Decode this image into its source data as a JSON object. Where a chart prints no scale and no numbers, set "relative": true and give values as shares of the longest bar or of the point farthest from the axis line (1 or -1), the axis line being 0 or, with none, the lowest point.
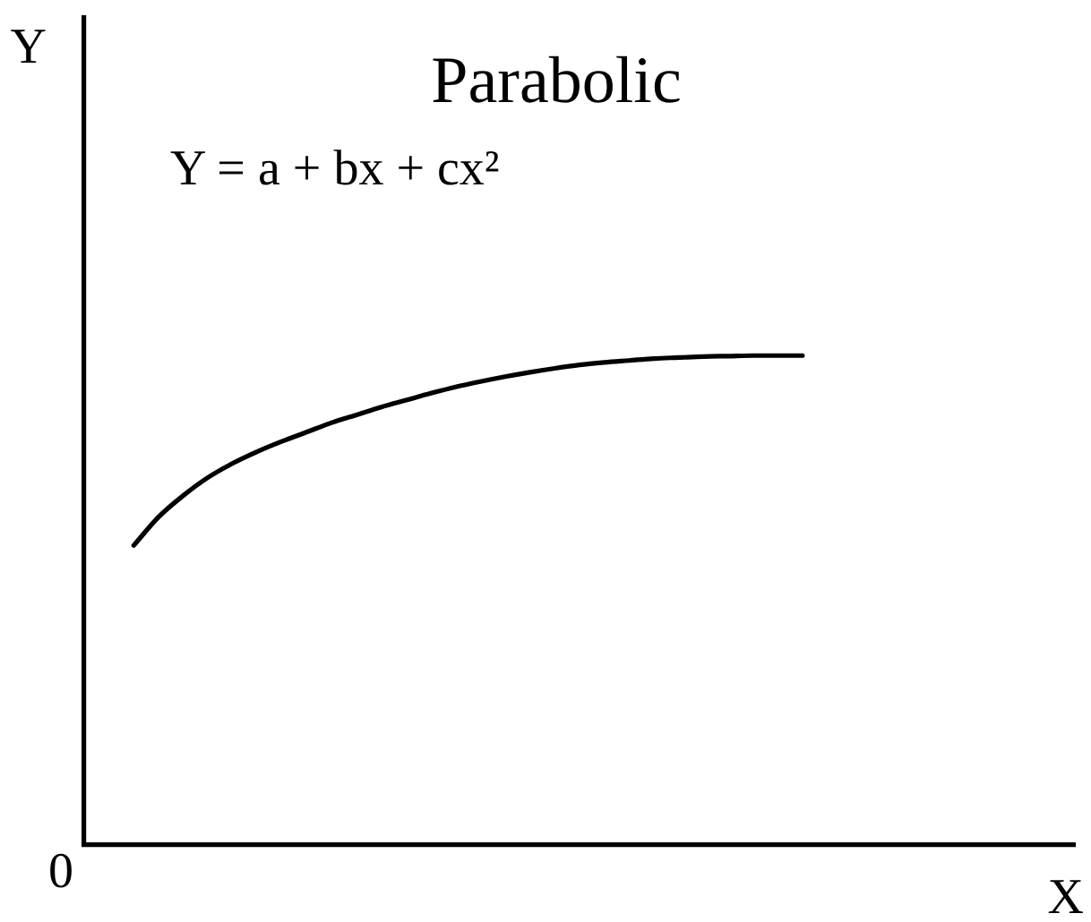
{
  "chart_data": {
    "type": "line",
    "title": "Parabolic",
    "xlabel": "X",
    "annotations": [
      "Y",
      "Y = a + bx + cx²",
      "0"
    ],
    "relative": true,
    "marker": "none",
    "color": "#000000",
    "categories": [
      null,
      null,
      null,
      null,
      null,
      null,
      null,
      null,
      null,
      null,
      null,
      null,
      null,
      null,
      null,
      null,
      null,
      null,
      null,
      null,
      null,
      null,
      null,
      null,
      null,
      null,
      null,
      null,
      null,
      null,
      null,
      null,
      null,
      null,
      null,
      null,
      null,
      null,
      null,
      null,
      null
    ],
    "values": [
      null,
      null,
      0.612,
      0.67,
      0.714,
      0.751,
      0.78,
      0.804,
      0.825,
      0.844,
      0.863,
      0.879,
      0.895,
      0.909,
      0.923,
      0.936,
      0.947,
      0.957,
      0.966,
      0.974,
      0.981,
      0.986,
      0.99,
      0.994,
      0.996,
      0.998,
      0.999,
      1,
      1,
      1,
      null,
      null,
      null,
      null,
      null,
      null,
      null,
      null,
      null,
      null,
      null
    ]
  }
}
